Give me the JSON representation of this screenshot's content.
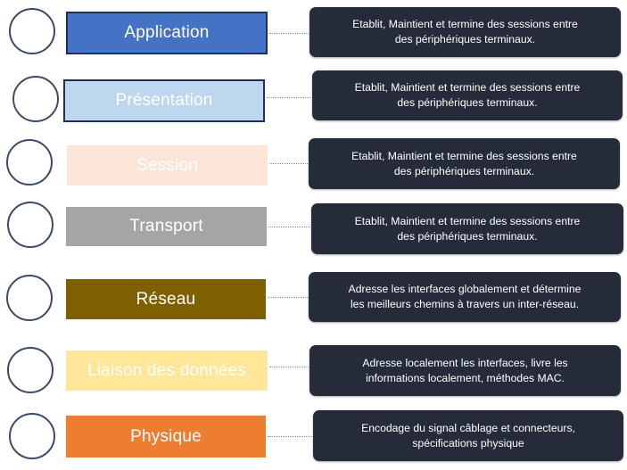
{
  "layers": [
    {
      "label": "Application",
      "desc_line1": "Etablit, Maintient et  termine des sessions  entre",
      "desc_line2": "des périphériques  terminaux.",
      "fill": "#4472c4",
      "text": "#ffffff"
    },
    {
      "label": "Présentation",
      "desc_line1": "Etablit, Maintient et  termine  des sessions  entre",
      "desc_line2": "des périphériques  terminaux.",
      "fill": "#bdd7ee",
      "text": "#ffffff"
    },
    {
      "label": "Session",
      "desc_line1": "Etablit, Maintient et  termine  des sessions  entre",
      "desc_line2": "des périphériques  terminaux.",
      "fill": "#fbe5d6",
      "text": "#ffffff"
    },
    {
      "label": "Transport",
      "desc_line1": "Etablit, Maintient et  termine  des sessions  entre",
      "desc_line2": "des périphériques  terminaux.",
      "fill": "#a5a5a5",
      "text": "#ffffff"
    },
    {
      "label": "Réseau",
      "desc_line1": "Adresse  les interfaces globalement  et détermine",
      "desc_line2": "les meilleurs chemins à travers  un inter-réseau.",
      "fill": "#7f6000",
      "text": "#ffffff"
    },
    {
      "label": "Liaison des données",
      "desc_line1": "Adresse localement les interfaces, livre  les",
      "desc_line2": "informations  localement,  méthodes MAC.",
      "fill": "#ffe699",
      "text": "#ffffff"
    },
    {
      "label": "Physique",
      "desc_line1": "Encodage du signal câblage et connecteurs,",
      "desc_line2": "spécifications physique",
      "fill": "#ed7d31",
      "text": "#ffffff"
    }
  ]
}
